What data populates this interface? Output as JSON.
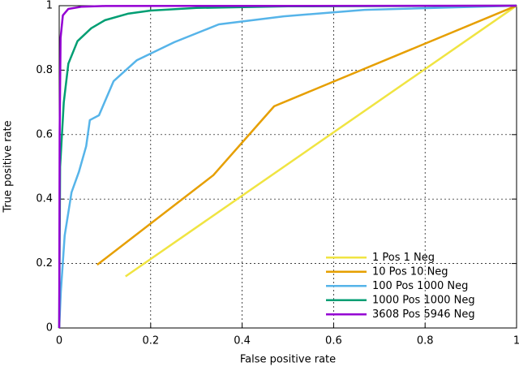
{
  "chart_data": {
    "type": "line",
    "xlabel": "False positive rate",
    "ylabel": "True positive rate",
    "xlim": [
      0,
      1
    ],
    "ylim": [
      0,
      1
    ],
    "xticks": [
      0,
      0.2,
      0.4,
      0.6,
      0.8,
      1
    ],
    "yticks": [
      0,
      0.2,
      0.4,
      0.6,
      0.8,
      1
    ],
    "grid": true,
    "legend": "lower right",
    "series": [
      {
        "name": "1 Pos 1 Neg",
        "color": "#f0e442",
        "x": [
          0.145,
          1
        ],
        "values": [
          0.16,
          1
        ]
      },
      {
        "name": "10 Pos 10 Neg",
        "color": "#e69f00",
        "x": [
          0.083,
          0.337,
          0.47,
          1
        ],
        "values": [
          0.196,
          0.474,
          0.688,
          1
        ]
      },
      {
        "name": "100 Pos 1000 Neg",
        "color": "#56b4e9",
        "x": [
          0,
          0.0035,
          0.012,
          0.027,
          0.043,
          0.059,
          0.067,
          0.087,
          0.119,
          0.17,
          0.252,
          0.349,
          0.491,
          0.668,
          1
        ],
        "values": [
          0,
          0.111,
          0.287,
          0.421,
          0.484,
          0.564,
          0.645,
          0.66,
          0.766,
          0.831,
          0.887,
          0.942,
          0.967,
          0.987,
          1
        ]
      },
      {
        "name": "1000 Pos 1000 Neg",
        "color": "#009e73",
        "x": [
          0,
          0.002,
          0.01,
          0.02,
          0.04,
          0.07,
          0.1,
          0.15,
          0.2,
          0.3,
          0.5,
          1
        ],
        "values": [
          0,
          0.5,
          0.7,
          0.82,
          0.89,
          0.93,
          0.955,
          0.975,
          0.985,
          0.993,
          0.998,
          1
        ]
      },
      {
        "name": "3608 Pos 5946 Neg",
        "color": "#9400d3",
        "x": [
          0,
          0.001,
          0.003,
          0.008,
          0.02,
          0.05,
          0.1,
          1
        ],
        "values": [
          0,
          0.6,
          0.9,
          0.97,
          0.99,
          0.997,
          0.999,
          1
        ]
      }
    ]
  }
}
